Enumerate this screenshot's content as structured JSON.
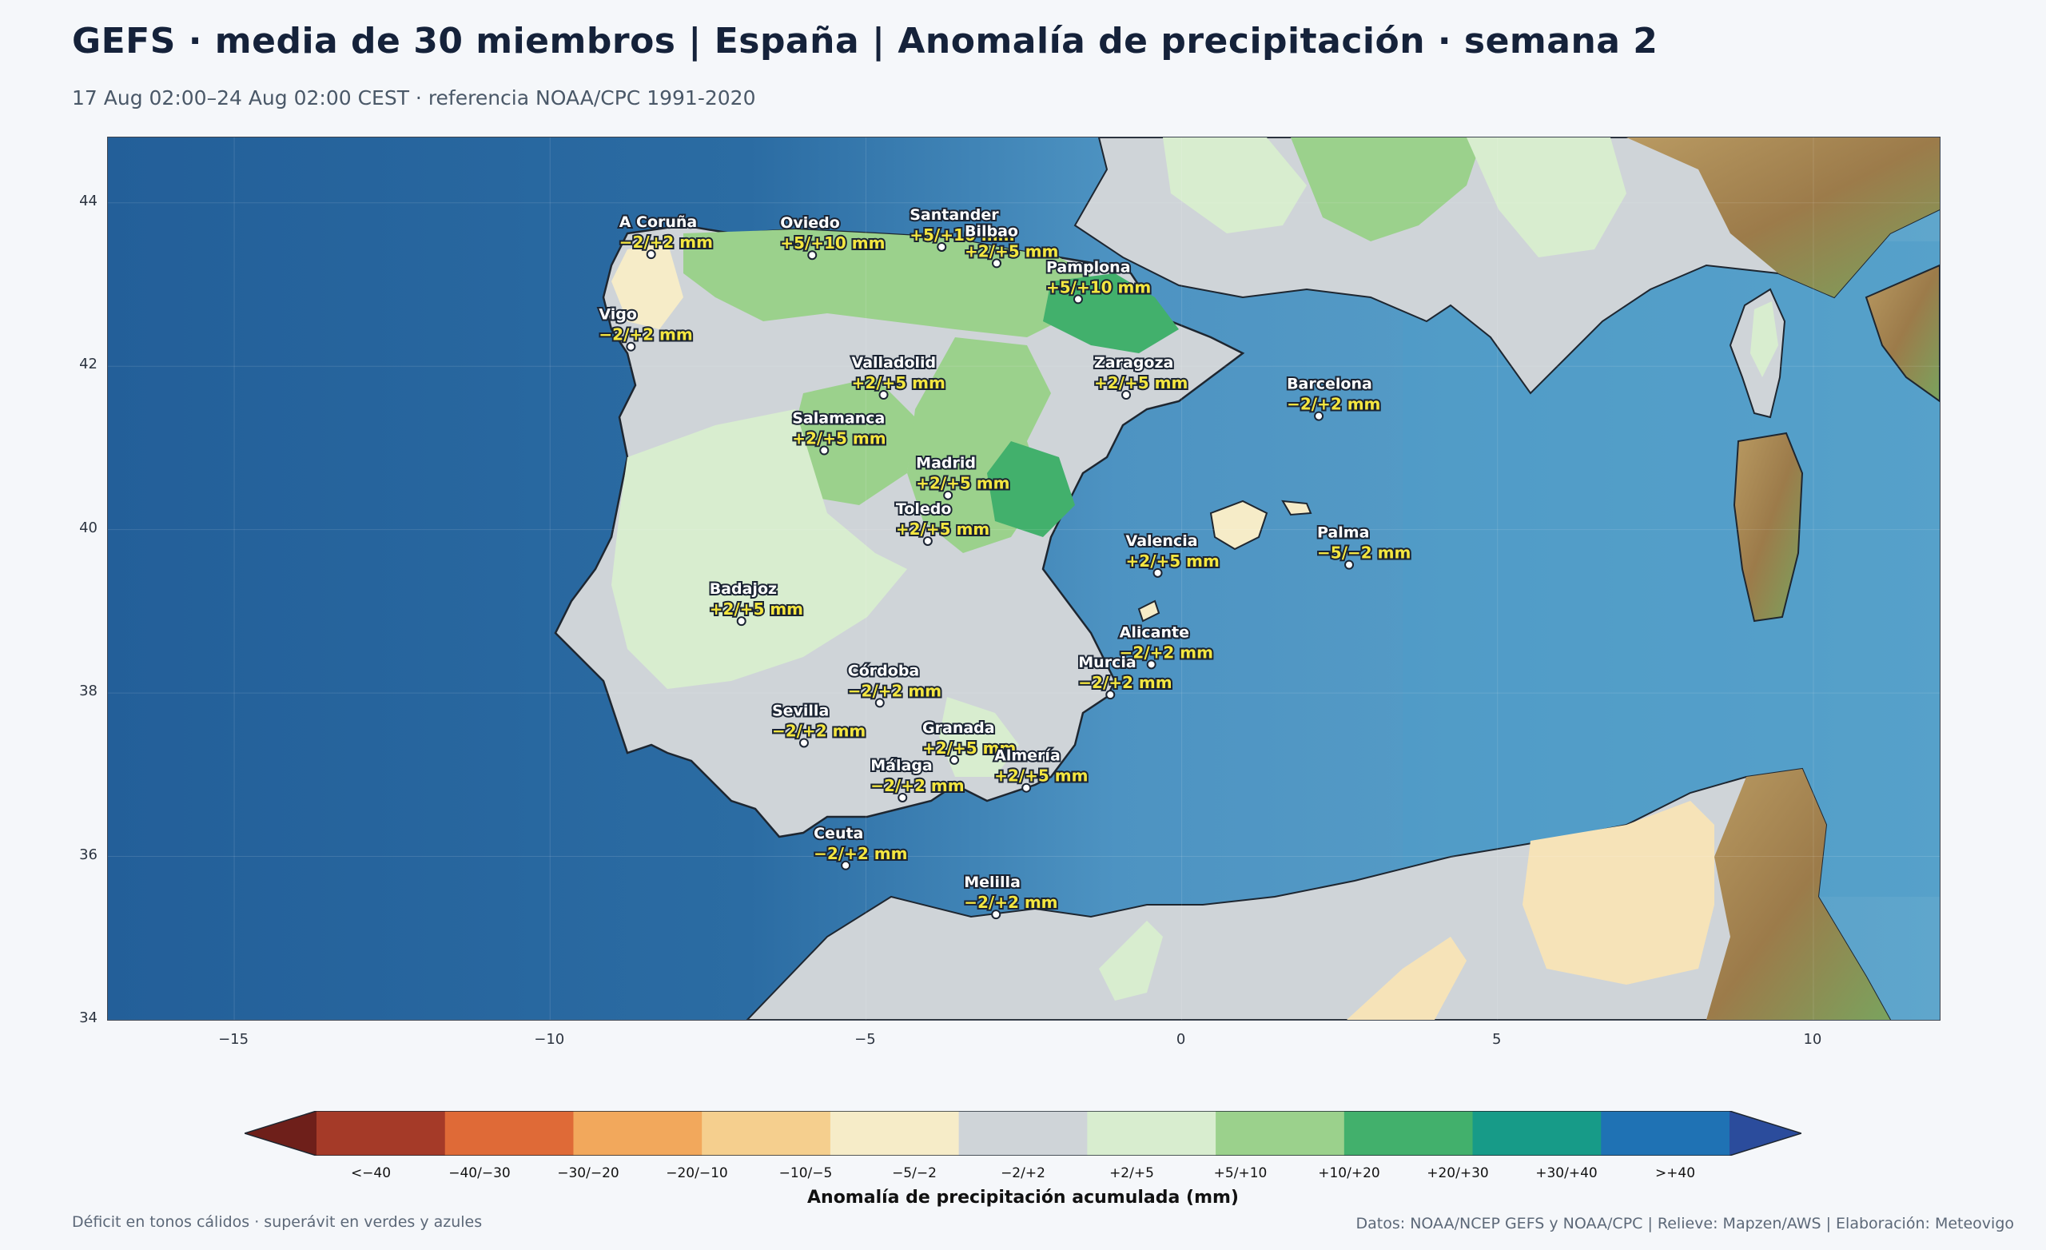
{
  "header": {
    "title": "GEFS · media de 30 miembros | España | Anomalía de precipitación · semana 2",
    "subtitle": "17 Aug 02:00–24 Aug 02:00 CEST · referencia NOAA/CPC 1991-2020"
  },
  "map": {
    "lon_range": [
      -17,
      12
    ],
    "lat_range": [
      34,
      44.8
    ],
    "lat_ticks": [
      "34",
      "36",
      "38",
      "40",
      "42",
      "44"
    ],
    "lon_ticks": [
      "−15",
      "−10",
      "−5",
      "0",
      "5",
      "10"
    ],
    "cities": [
      {
        "name": "A Coruña",
        "value": "−2/+2 mm",
        "lon": -8.4,
        "lat": 43.37
      },
      {
        "name": "Oviedo",
        "value": "+5/+10 mm",
        "lon": -5.85,
        "lat": 43.36
      },
      {
        "name": "Santander",
        "value": "+5/+10 mm",
        "lon": -3.8,
        "lat": 43.46
      },
      {
        "name": "Bilbao",
        "value": "+2/+5 mm",
        "lon": -2.93,
        "lat": 43.26
      },
      {
        "name": "Pamplona",
        "value": "+5/+10 mm",
        "lon": -1.64,
        "lat": 42.82
      },
      {
        "name": "Vigo",
        "value": "−2/+2 mm",
        "lon": -8.72,
        "lat": 42.24
      },
      {
        "name": "Valladolid",
        "value": "+2/+5 mm",
        "lon": -4.72,
        "lat": 41.65
      },
      {
        "name": "Zaragoza",
        "value": "+2/+5 mm",
        "lon": -0.88,
        "lat": 41.65
      },
      {
        "name": "Barcelona",
        "value": "−2/+2 mm",
        "lon": 2.17,
        "lat": 41.39
      },
      {
        "name": "Salamanca",
        "value": "+2/+5 mm",
        "lon": -5.66,
        "lat": 40.97
      },
      {
        "name": "Madrid",
        "value": "+2/+5 mm",
        "lon": -3.7,
        "lat": 40.42
      },
      {
        "name": "Toledo",
        "value": "+2/+5 mm",
        "lon": -4.02,
        "lat": 39.86
      },
      {
        "name": "Valencia",
        "value": "+2/+5 mm",
        "lon": -0.38,
        "lat": 39.47
      },
      {
        "name": "Palma",
        "value": "−5/−2 mm",
        "lon": 2.65,
        "lat": 39.57
      },
      {
        "name": "Badajoz",
        "value": "+2/+5 mm",
        "lon": -6.97,
        "lat": 38.88
      },
      {
        "name": "Córdoba",
        "value": "−2/+2 mm",
        "lon": -4.78,
        "lat": 37.88
      },
      {
        "name": "Murcia",
        "value": "−2/+2 mm",
        "lon": -1.13,
        "lat": 37.98
      },
      {
        "name": "Alicante",
        "value": "−2/+2 mm",
        "lon": -0.48,
        "lat": 38.35
      },
      {
        "name": "Granada",
        "value": "+2/+5 mm",
        "lon": -3.6,
        "lat": 37.18
      },
      {
        "name": "Sevilla",
        "value": "−2/+2 mm",
        "lon": -5.98,
        "lat": 37.39
      },
      {
        "name": "Almería",
        "value": "+2/+5 mm",
        "lon": -2.46,
        "lat": 36.84
      },
      {
        "name": "Málaga",
        "value": "−2/+2 mm",
        "lon": -4.42,
        "lat": 36.72
      },
      {
        "name": "Ceuta",
        "value": "−2/+2 mm",
        "lon": -5.32,
        "lat": 35.89
      },
      {
        "name": "Melilla",
        "value": "−2/+2 mm",
        "lon": -2.94,
        "lat": 35.29
      }
    ]
  },
  "colorbar": {
    "title": "Anomalía de precipitación acumulada (mm)",
    "bins": [
      {
        "label": "<−40",
        "color": "#6e1f1a"
      },
      {
        "label": "−40/−30",
        "color": "#a53a28"
      },
      {
        "label": "−30/−20",
        "color": "#df6a37"
      },
      {
        "label": "−20/−10",
        "color": "#f2a85c"
      },
      {
        "label": "−10/−5",
        "color": "#f5cf8e"
      },
      {
        "label": "−5/−2",
        "color": "#f6ecc8"
      },
      {
        "label": "−2/+2",
        "color": "#cfd4d8"
      },
      {
        "label": "+2/+5",
        "color": "#d8edcf"
      },
      {
        "label": "+5/+10",
        "color": "#9bd18c"
      },
      {
        "label": "+10/+20",
        "color": "#42b06c"
      },
      {
        "label": "+20/+30",
        "color": "#179b88"
      },
      {
        "label": "+30/+40",
        "color": "#1f72b4"
      },
      {
        "label": ">+40",
        "color": "#2b4c9c"
      }
    ]
  },
  "footer": {
    "note_left": "Déficit en tonos cálidos · superávit en verdes y azules",
    "note_right": "Datos: NOAA/NCEP GEFS y NOAA/CPC | Relieve: Mapzen/AWS | Elaboración: Meteovigo"
  },
  "colors": {
    "sea_deep": "#2a6aa0",
    "sea_shallow": "#6aaed0",
    "land_neutral": "#cfd4d8"
  }
}
